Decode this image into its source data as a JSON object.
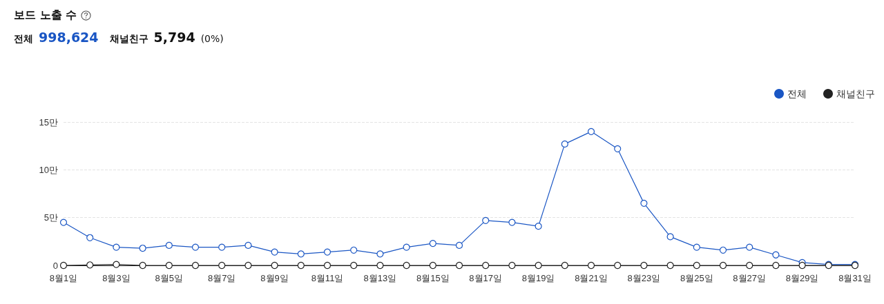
{
  "chart_data": {
    "type": "line",
    "title": "보드 노출 수",
    "annotations": [
      "전체",
      "998,624",
      "채널친구",
      "5,794",
      "(0%)"
    ],
    "categories": [
      "8월1일",
      null,
      "8월3일",
      null,
      "8월5일",
      null,
      "8월7일",
      null,
      "8월9일",
      null,
      "8월11일",
      null,
      "8월13일",
      null,
      "8월15일",
      null,
      "8월17일",
      null,
      "8월19일",
      null,
      "8월21일",
      null,
      "8월23일",
      null,
      "8월25일",
      null,
      "8월27일",
      null,
      "8월29일",
      null,
      "8월31일"
    ],
    "series": [
      {
        "name": "전체",
        "color": "#1a56c4",
        "values": [
          4.5,
          2.9,
          1.9,
          1.8,
          2.1,
          1.9,
          1.9,
          2.1,
          1.4,
          1.2,
          1.4,
          1.6,
          1.2,
          1.9,
          2.3,
          2.1,
          4.7,
          4.5,
          4.1,
          12.7,
          14,
          12.2,
          6.5,
          3,
          1.9,
          1.6,
          1.9,
          1.1,
          0.3,
          0.1,
          0.1
        ]
      },
      {
        "name": "채널친구",
        "color": "#222222",
        "values": [
          0,
          0.05,
          0.1,
          0,
          0,
          0,
          0,
          0,
          0,
          0,
          0,
          0,
          0,
          0,
          0,
          0,
          0,
          0,
          0,
          0,
          0,
          0,
          0,
          0,
          0,
          0,
          0,
          0,
          0,
          0,
          0
        ]
      }
    ],
    "ylim": [
      0,
      15
    ],
    "yticks": [
      0,
      {
        "value": 5,
        "label": "5만"
      },
      {
        "value": 10,
        "label": "10만"
      },
      {
        "value": 15,
        "label": "15만"
      }
    ],
    "grid": "y",
    "legend": "top right",
    "marker": "circle",
    "line_style": "solid"
  }
}
